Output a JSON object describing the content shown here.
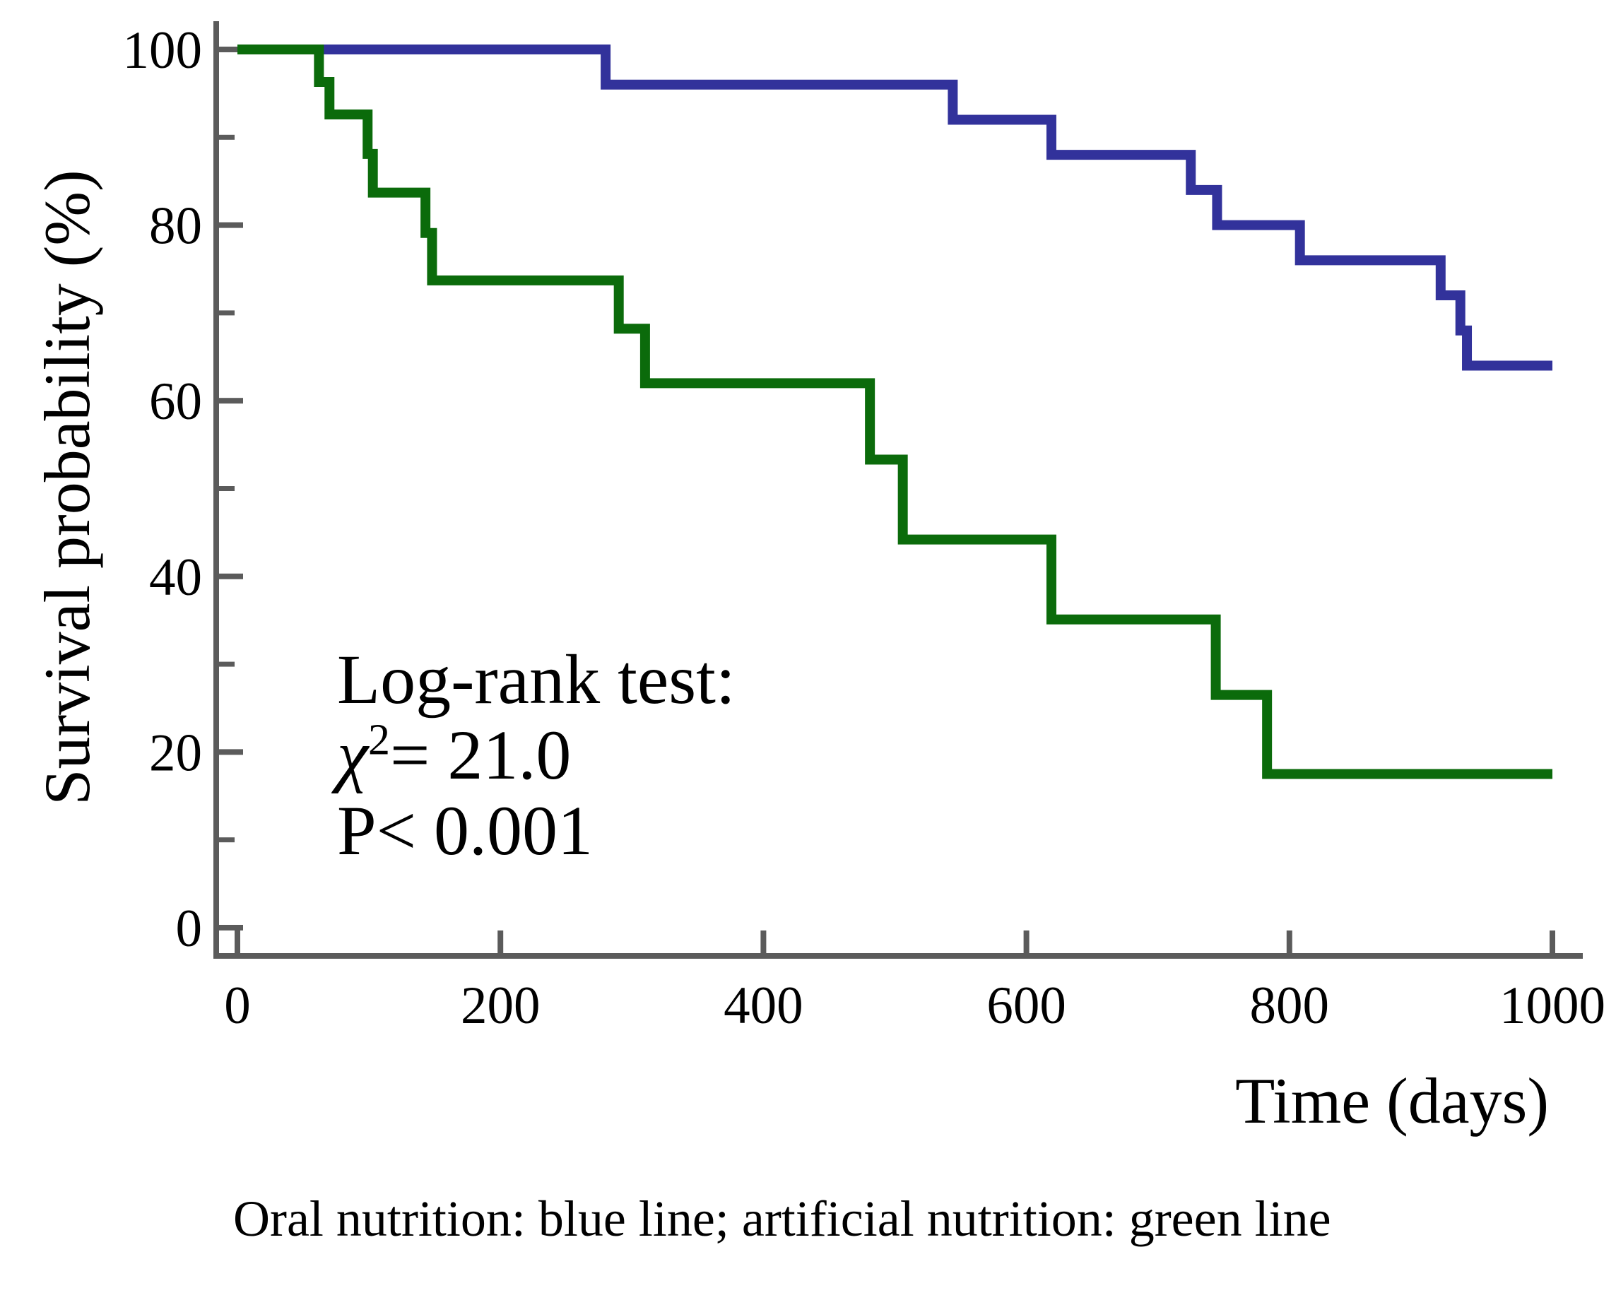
{
  "figure": {
    "ylabel": "Survival probability (%)",
    "xlabel": "Time (days)",
    "caption": "Oral nutrition: blue line; artificial nutrition: green line",
    "annotation": {
      "line1": "Log-rank test:",
      "chi": "χ",
      "chi_sup": "2",
      "chi_rest": "= 21.0",
      "line3": "P< 0.001"
    }
  },
  "colors": {
    "oral_blue": "#32329B",
    "artificial_green": "#0B6B0B",
    "axis_gray": "#5B5B5B",
    "text_black": "#000000"
  },
  "chart_data": {
    "type": "line",
    "subtype": "kaplan-meier-step",
    "title": "",
    "xlabel": "Time (days)",
    "ylabel": "Survival probability (%)",
    "xlim": [
      0,
      1000
    ],
    "ylim": [
      0,
      100
    ],
    "x_ticks": [
      0,
      200,
      400,
      600,
      800,
      1000
    ],
    "y_ticks_major": [
      0,
      20,
      40,
      60,
      80,
      100
    ],
    "y_ticks_minor": [
      10,
      30,
      50,
      70,
      90
    ],
    "grid": false,
    "legend_position": "caption-below-figure",
    "annotations": [
      "Log-rank test:",
      "χ²= 21.0",
      "P< 0.001"
    ],
    "series": [
      {
        "name": "Oral nutrition",
        "color": "#32329B",
        "end": 1000,
        "steps": [
          [
            0,
            100
          ],
          [
            280,
            96
          ],
          [
            544,
            92
          ],
          [
            619,
            88
          ],
          [
            725,
            84
          ],
          [
            745,
            80
          ],
          [
            808,
            76
          ],
          [
            915,
            72
          ],
          [
            930,
            68
          ],
          [
            935,
            64
          ]
        ]
      },
      {
        "name": "Artificial nutrition",
        "color": "#0B6B0B",
        "end": 1000,
        "steps": [
          [
            0,
            100
          ],
          [
            62,
            96.3
          ],
          [
            70,
            92.6
          ],
          [
            99,
            88.1
          ],
          [
            103,
            83.7
          ],
          [
            143,
            79.1
          ],
          [
            148,
            73.7
          ],
          [
            290,
            68.2
          ],
          [
            310,
            62
          ],
          [
            481,
            53.3
          ],
          [
            506,
            44.2
          ],
          [
            619,
            35.1
          ],
          [
            744,
            26.5
          ],
          [
            783,
            17.5
          ]
        ]
      }
    ]
  }
}
